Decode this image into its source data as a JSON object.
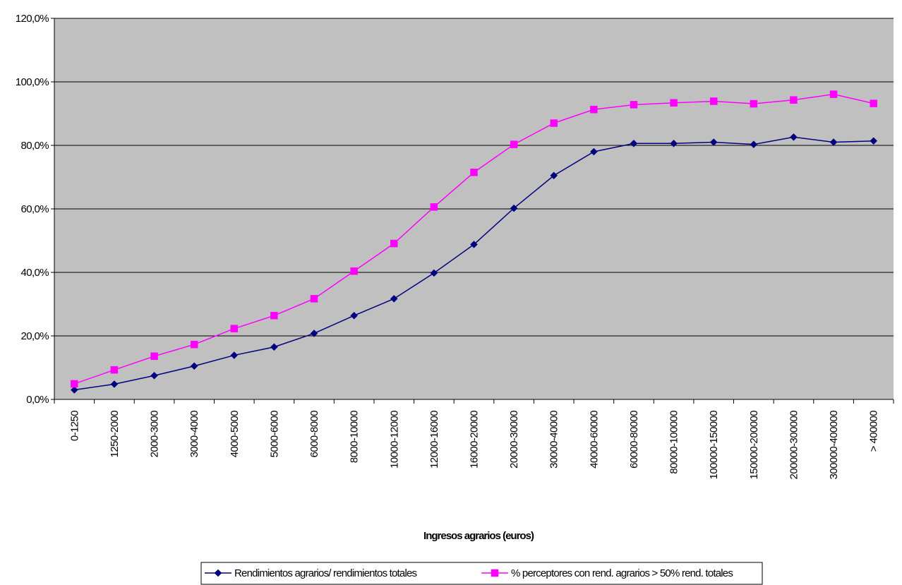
{
  "chart_data": {
    "type": "line",
    "xlabel": "Ingresos agrarios (euros)",
    "ylabel": "",
    "ylim": [
      0,
      120
    ],
    "yticks": [
      "0,0%",
      "20,0%",
      "40,0%",
      "60,0%",
      "80,0%",
      "100,0%",
      "120,0%"
    ],
    "grid": true,
    "legend_position": "bottom",
    "categories": [
      "0-1250",
      "1250-2000",
      "2000-3000",
      "3000-4000",
      "4000-5000",
      "5000-6000",
      "6000-8000",
      "8000-10000",
      "10000-12000",
      "12000-16000",
      "16000-20000",
      "20000-30000",
      "30000-40000",
      "40000-60000",
      "60000-80000",
      "80000-100000",
      "100000-150000",
      "150000-200000",
      "200000-300000",
      "300000-400000",
      "> 400000"
    ],
    "series": [
      {
        "name": "Rendimientos agrarios/ rendimientos totales",
        "color": "#000080",
        "marker": "diamond",
        "values": [
          3.0,
          4.8,
          7.5,
          10.5,
          13.9,
          16.5,
          20.8,
          26.4,
          31.7,
          39.8,
          48.8,
          60.2,
          70.5,
          78.0,
          80.6,
          80.6,
          81.0,
          80.3,
          82.6,
          81.0,
          81.4
        ]
      },
      {
        "name": "% perceptores con rend. agrarios > 50% rend. totales",
        "color": "#FF00FF",
        "marker": "square",
        "values": [
          4.9,
          9.3,
          13.6,
          17.3,
          22.3,
          26.4,
          31.7,
          40.4,
          49.1,
          60.6,
          71.5,
          80.3,
          87.0,
          91.3,
          92.8,
          93.4,
          93.9,
          93.1,
          94.3,
          96.1,
          93.2
        ]
      }
    ]
  }
}
